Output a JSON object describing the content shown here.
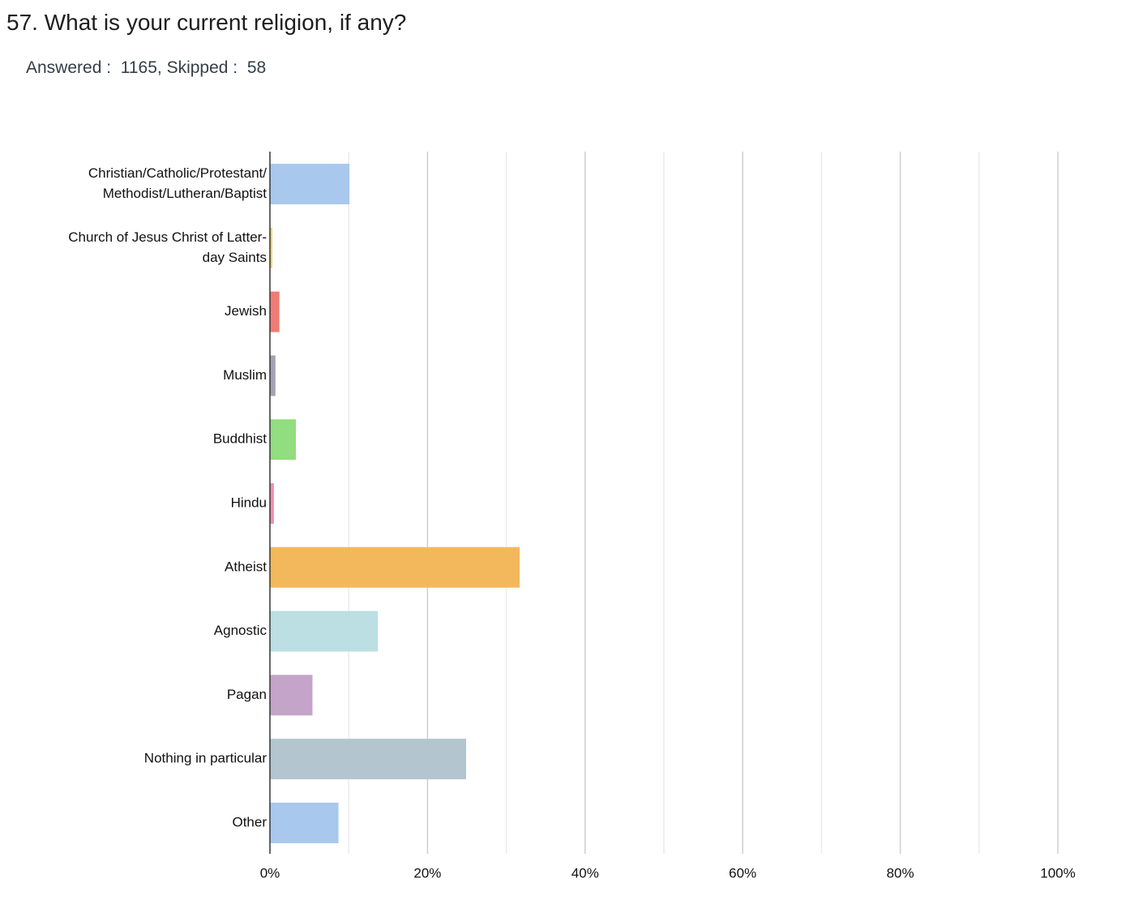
{
  "question": {
    "title": "57. What is your current religion, if any?",
    "answered_label": "Answered :",
    "answered_value": "1165",
    "skipped_label": "Skipped :",
    "skipped_value": "58"
  },
  "chart_data": {
    "type": "bar",
    "orientation": "horizontal",
    "title": "",
    "xlabel": "",
    "ylabel": "",
    "xlim": [
      0,
      100
    ],
    "x_ticks": [
      "0%",
      "20%",
      "40%",
      "60%",
      "80%",
      "100%"
    ],
    "grid": true,
    "categories": [
      [
        "Christian/Catholic/Protestant/",
        "Methodist/Lutheran/Baptist"
      ],
      [
        "Church of Jesus Christ of Latter-",
        "day Saints"
      ],
      [
        "Jewish"
      ],
      [
        "Muslim"
      ],
      [
        "Buddhist"
      ],
      [
        "Hindu"
      ],
      [
        "Atheist"
      ],
      [
        "Agnostic"
      ],
      [
        "Pagan"
      ],
      [
        "Nothing in particular"
      ],
      [
        "Other"
      ]
    ],
    "values": [
      10.1,
      0.3,
      1.2,
      0.7,
      3.3,
      0.5,
      31.7,
      13.7,
      5.4,
      24.9,
      8.7
    ],
    "colors": [
      "#a9c8ee",
      "#f3d36b",
      "#f07b74",
      "#a4a3b5",
      "#91dd7f",
      "#f08fb2",
      "#f4b85c",
      "#bbdfe3",
      "#c4a4c8",
      "#b3c5cf",
      "#a9c8ee"
    ]
  }
}
